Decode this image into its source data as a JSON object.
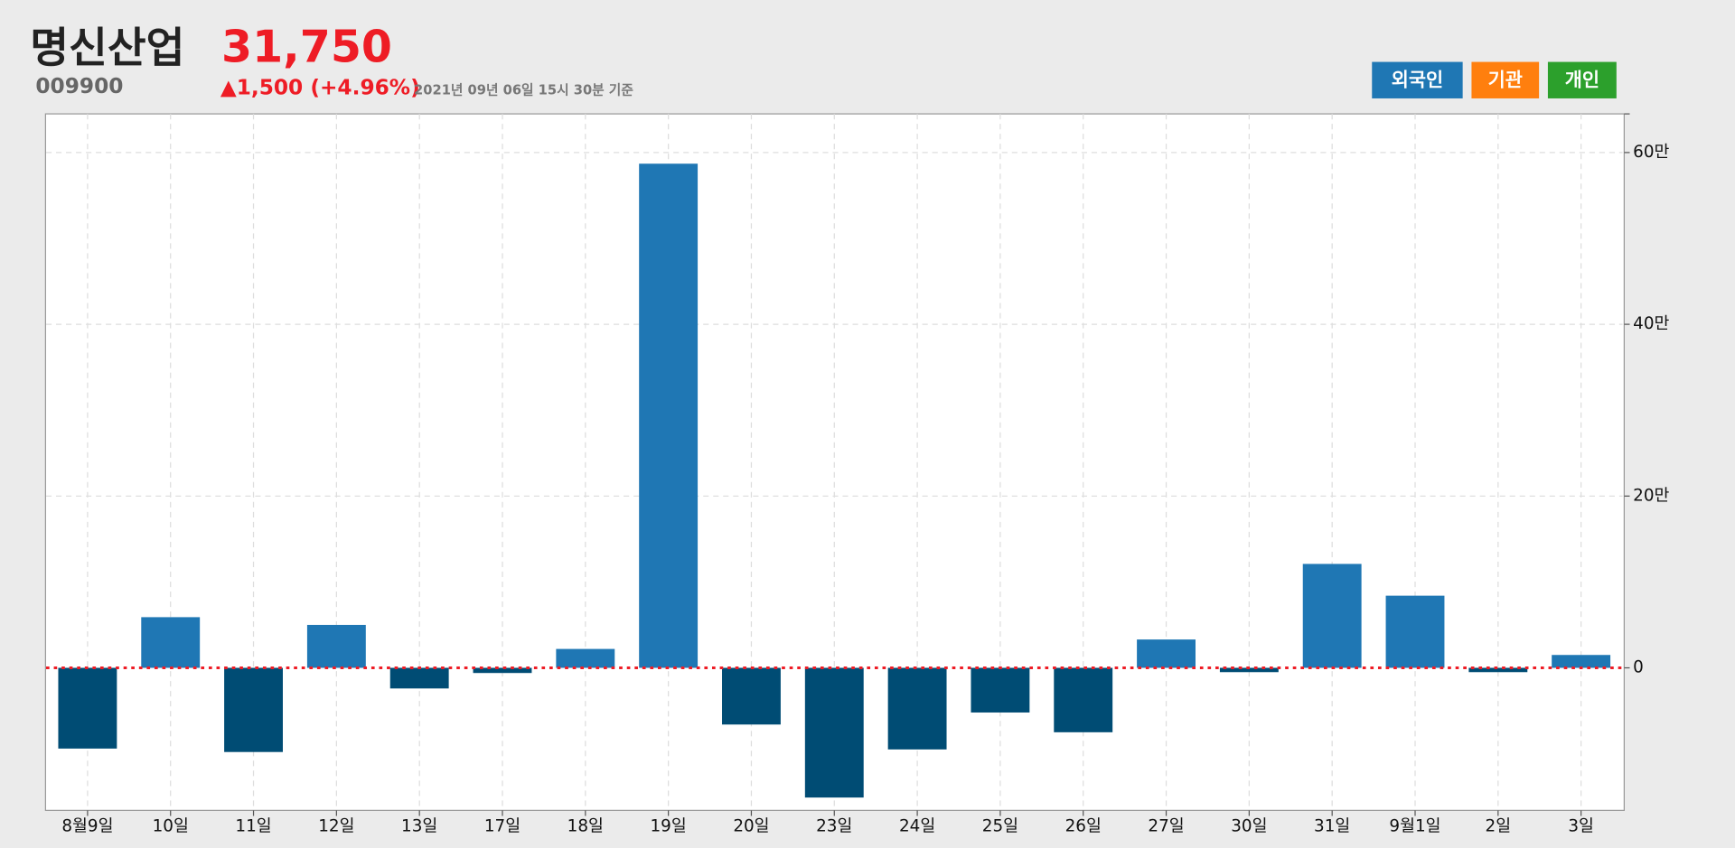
{
  "header": {
    "title": "명신산업",
    "price": "31,750",
    "code": "009900",
    "change": "▲1,500 (+4.96%)",
    "timestamp": "2021년 09년 06일 15시 30분 기준"
  },
  "buttons": [
    {
      "label": "외국인",
      "color": "#1f77b4"
    },
    {
      "label": "기관",
      "color": "#ff7f0e"
    },
    {
      "label": "개인",
      "color": "#2ca02c"
    }
  ],
  "chart_data": {
    "type": "bar",
    "categories": [
      "8월9일",
      "10일",
      "11일",
      "12일",
      "13일",
      "17일",
      "18일",
      "19일",
      "20일",
      "23일",
      "24일",
      "25일",
      "26일",
      "27일",
      "30일",
      "31일",
      "9월1일",
      "2일",
      "3일"
    ],
    "values": [
      -94000,
      59000,
      -98000,
      50000,
      -24000,
      -6000,
      22000,
      587000,
      -66000,
      -151000,
      -95000,
      -52000,
      -75000,
      33000,
      -5000,
      121000,
      84000,
      -5000,
      15000
    ],
    "color": "#1f77b4",
    "negative_color": "#004c74",
    "ylim": [
      -166000,
      645000
    ],
    "yticks": [
      0,
      {
        "value": 200000,
        "label": "20만"
      },
      {
        "value": 400000,
        "label": "40만"
      },
      {
        "value": 600000,
        "label": "60만"
      }
    ],
    "grid": true
  }
}
